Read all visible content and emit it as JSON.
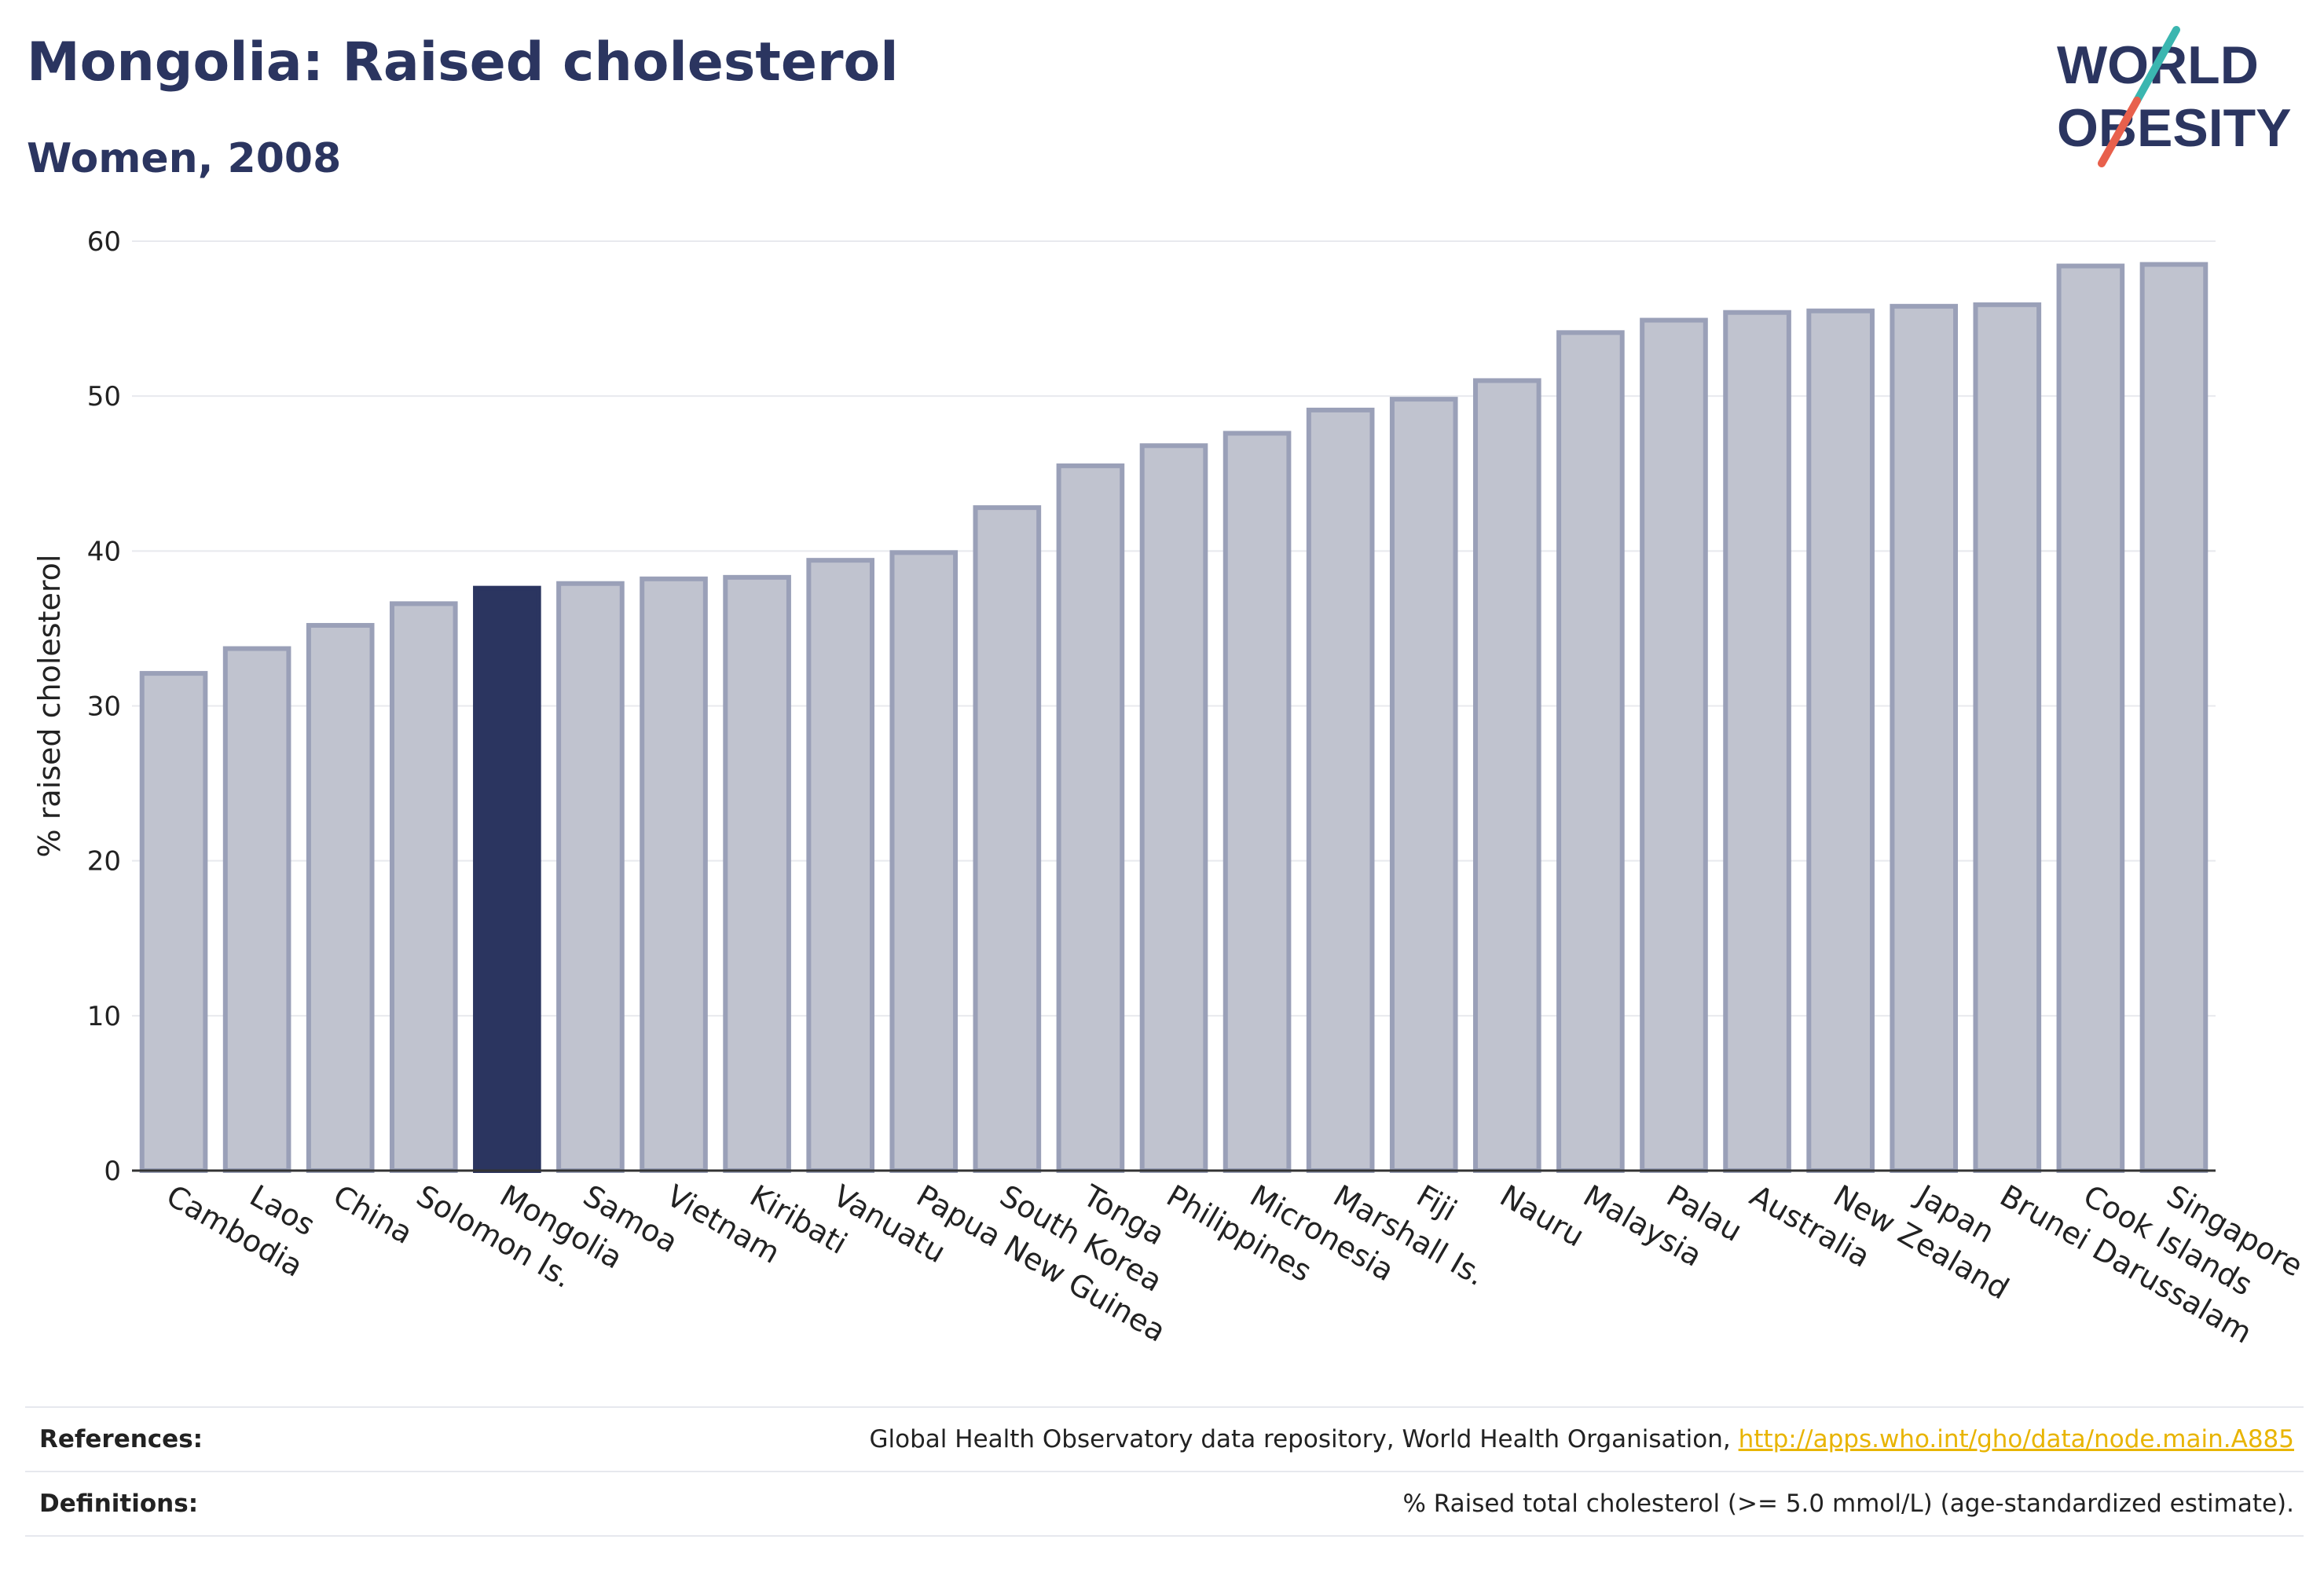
{
  "header": {
    "title": "Mongolia: Raised cholesterol",
    "subtitle": "Women, 2008"
  },
  "logo": {
    "text_line1": "WORLD",
    "text_line2": "OBESITY",
    "colors": {
      "text": "#2b3560",
      "slash_teal": "#3bb6b0",
      "slash_red": "#e8604c"
    }
  },
  "chart_data": {
    "type": "bar",
    "title": "Mongolia: Raised cholesterol",
    "subtitle": "Women, 2008",
    "ylabel": "% raised cholesterol",
    "xlabel": "",
    "ylim": [
      0,
      60
    ],
    "yticks": [
      0,
      10,
      20,
      30,
      40,
      50,
      60
    ],
    "grid": true,
    "highlight": "Mongolia",
    "colors": {
      "bar": "#c0c3cf",
      "bar_border": "#9aa0b8",
      "highlight": "#2b3560",
      "grid": "#e8e9ee",
      "axis": "#333333"
    },
    "categories": [
      "Cambodia",
      "Laos",
      "China",
      "Solomon Is.",
      "Mongolia",
      "Samoa",
      "Vietnam",
      "Kiribati",
      "Vanuatu",
      "Papua New Guinea",
      "South Korea",
      "Tonga",
      "Philippines",
      "Micronesia",
      "Marshall Is.",
      "Fiji",
      "Nauru",
      "Malaysia",
      "Palau",
      "Australia",
      "New Zealand",
      "Japan",
      "Brunei Darussalam",
      "Cook Islands",
      "Singapore"
    ],
    "values": [
      32.1,
      33.7,
      35.2,
      36.6,
      37.6,
      37.9,
      38.2,
      38.3,
      39.4,
      39.9,
      42.8,
      45.5,
      46.8,
      47.6,
      49.1,
      49.8,
      51.0,
      54.1,
      54.9,
      55.4,
      55.5,
      55.8,
      55.9,
      58.4,
      58.5
    ]
  },
  "footer": {
    "references_label": "References:",
    "references_text": "Global Health Observatory data repository, World Health Organisation, ",
    "references_link": "http://apps.who.int/gho/data/node.main.A885",
    "definitions_label": "Definitions:",
    "definitions_text": "% Raised total cholesterol (>= 5.0 mmol/L) (age-standardized estimate)."
  }
}
